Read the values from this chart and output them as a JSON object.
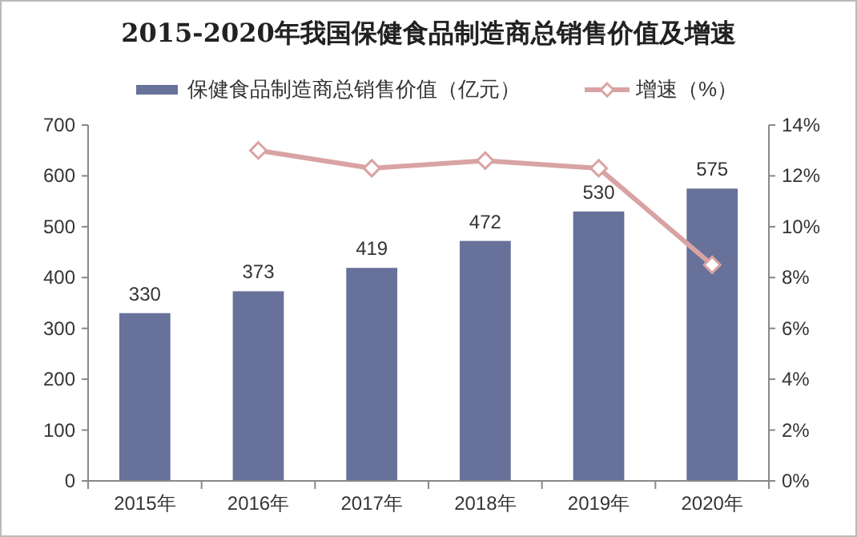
{
  "chart_data": {
    "type": "bar",
    "title": "2015-2020年我国保健食品制造商总销售价值及增速",
    "categories": [
      "2015年",
      "2016年",
      "2017年",
      "2018年",
      "2019年",
      "2020年"
    ],
    "series": [
      {
        "name": "保健食品制造商总销售价值（亿元）",
        "color": "#67719a",
        "values": [
          330,
          373,
          419,
          472,
          530,
          575
        ],
        "value_labels": [
          "330",
          "373",
          "419",
          "472",
          "530",
          "575"
        ]
      },
      {
        "name": "增速（%）",
        "type": "line",
        "axis": "y2",
        "color": "#d9a3a3",
        "marker": "diamond",
        "values": [
          null,
          13.0,
          12.3,
          12.6,
          12.3,
          8.5
        ]
      }
    ],
    "ylim": [
      0,
      700
    ],
    "yticks": [
      0,
      100,
      200,
      300,
      400,
      500,
      600,
      700
    ],
    "y2lim": [
      0,
      14
    ],
    "y2ticks": [
      {
        "value": 0,
        "label": "0%"
      },
      {
        "value": 2,
        "label": "2%"
      },
      {
        "value": 4,
        "label": "4%"
      },
      {
        "value": 6,
        "label": "6%"
      },
      {
        "value": 8,
        "label": "8%"
      },
      {
        "value": 10,
        "label": "10%"
      },
      {
        "value": 12,
        "label": "12%"
      },
      {
        "value": 14,
        "label": "14%"
      }
    ],
    "grid": false,
    "legend": "top"
  }
}
